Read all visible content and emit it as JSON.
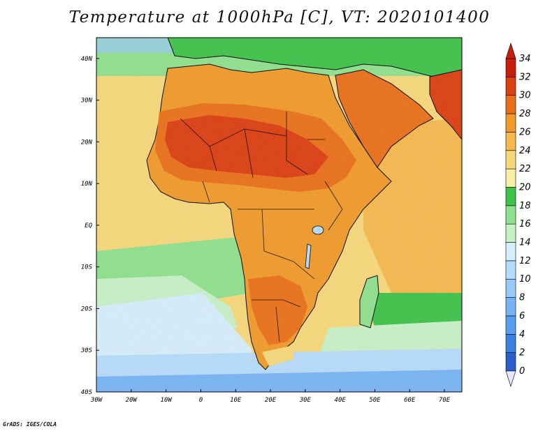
{
  "title": "Temperature at 1000hPa [C], VT: 2020101400",
  "credit": "GrADS: IGES/COLA",
  "map": {
    "lon_range": [
      -30,
      75
    ],
    "lat_range": [
      -40,
      45
    ],
    "lon_ticks": [
      "30W",
      "20W",
      "10W",
      "0",
      "10E",
      "20E",
      "30E",
      "40E",
      "50E",
      "60E",
      "70E"
    ],
    "lon_tick_values": [
      -30,
      -20,
      -10,
      0,
      10,
      20,
      30,
      40,
      50,
      60,
      70
    ],
    "lat_ticks": [
      "40N",
      "30N",
      "20N",
      "10N",
      "EQ",
      "10S",
      "20S",
      "30S",
      "40S"
    ],
    "lat_tick_values": [
      40,
      30,
      20,
      10,
      0,
      -10,
      -20,
      -30,
      -40
    ]
  },
  "colorbar": {
    "levels": [
      "0",
      "2",
      "4",
      "6",
      "8",
      "10",
      "12",
      "14",
      "16",
      "18",
      "20",
      "22",
      "24",
      "26",
      "28",
      "30",
      "32",
      "34"
    ],
    "colors": [
      "#1e3c8c",
      "#2a5fc9",
      "#3b7fe0",
      "#5a9cef",
      "#78b4f4",
      "#98c9f7",
      "#b6dbf9",
      "#d6edfa",
      "#c7f0c6",
      "#8fe08c",
      "#3fc24a",
      "#f7f0a6",
      "#f6d77a",
      "#f4b84e",
      "#f09a2a",
      "#e9701a",
      "#dc3f12",
      "#c81e0e"
    ],
    "under_color": "#e6e6fa",
    "over_color": "#c81e0e"
  }
}
